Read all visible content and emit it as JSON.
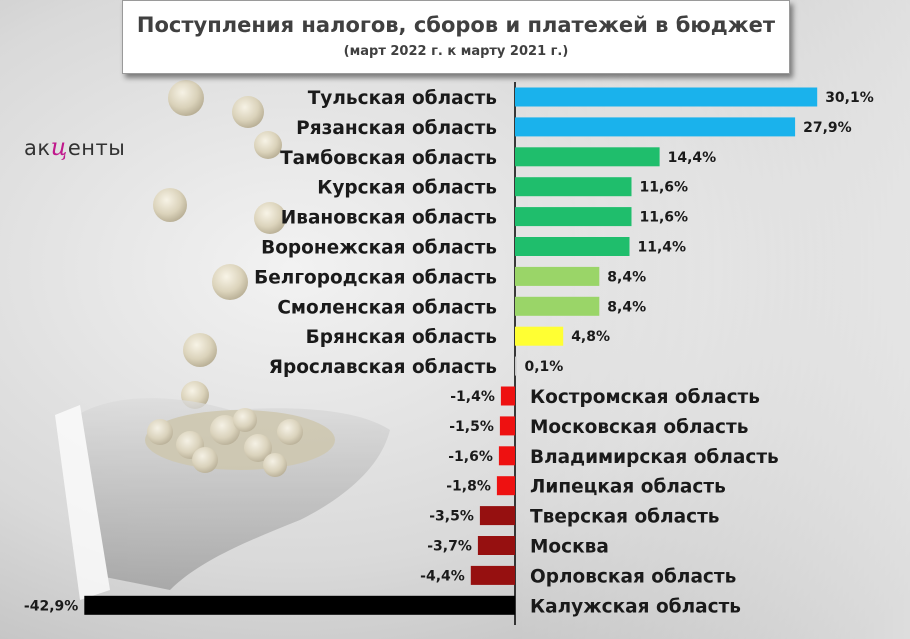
{
  "title": "Поступления налогов, сборов и платежей в бюджет",
  "subtitle": "(март 2022 г. к марту 2021 г.)",
  "logo": {
    "part1": "ак",
    "accent": "ц",
    "part2": "енты",
    "full": "акценты"
  },
  "colors": {
    "top": "#1ab2ec",
    "high": "#1fbe6c",
    "mid": "#9ad568",
    "low": "#ffff33",
    "neutral": "#c9c9c9",
    "neg_small": "#ee1111",
    "neg_mid": "#961010",
    "neg_big": "#000000"
  },
  "chart_data": {
    "type": "bar",
    "orientation": "horizontal",
    "title": "Поступления налогов, сборов и платежей в бюджет",
    "subtitle": "(март 2022 г. к марту 2021 г.)",
    "unit": "%",
    "categories": [
      "Тульская область",
      "Рязанская область",
      "Тамбовская область",
      "Курская область",
      "Ивановская область",
      "Воронежская область",
      "Белгородская область",
      "Смоленская область",
      "Брянская область",
      "Ярославская область",
      "Костромская область",
      "Московская область",
      "Владимирская область",
      "Липецкая область",
      "Тверская область",
      "Москва",
      "Орловская область",
      "Калужская область"
    ],
    "values": [
      30.1,
      27.9,
      14.4,
      11.6,
      11.6,
      11.4,
      8.4,
      8.4,
      4.8,
      0.1,
      -1.4,
      -1.5,
      -1.6,
      -1.8,
      -3.5,
      -3.7,
      -4.4,
      -42.9
    ],
    "labels": [
      "30,1%",
      "27,9%",
      "14,4%",
      "11,6%",
      "11,6%",
      "11,4%",
      "8,4%",
      "8,4%",
      "4,8%",
      "0,1%",
      "-1,4%",
      "-1,5%",
      "-1,6%",
      "-1,8%",
      "-3,5%",
      "-3,7%",
      "-4,4%",
      "-42,9%"
    ],
    "bar_colors": [
      "top",
      "top",
      "high",
      "high",
      "high",
      "high",
      "mid",
      "mid",
      "low",
      "neutral",
      "neg_small",
      "neg_small",
      "neg_small",
      "neg_small",
      "neg_mid",
      "neg_mid",
      "neg_mid",
      "neg_big"
    ],
    "xlim": [
      -42.9,
      30.1
    ],
    "legend": "none",
    "grid": false
  }
}
